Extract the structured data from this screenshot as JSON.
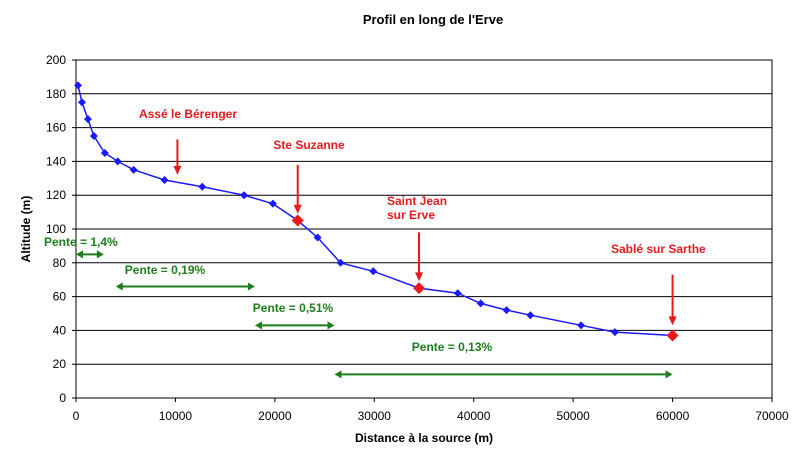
{
  "chart_data": {
    "type": "line",
    "title": "Profil en long de l'Erve",
    "xlabel": "Distance à la source (m)",
    "ylabel": "Altitude (m)",
    "xlim": [
      0,
      70000
    ],
    "ylim": [
      0,
      200
    ],
    "x_ticks": [
      "0",
      "10000",
      "20000",
      "30000",
      "40000",
      "50000",
      "60000",
      "70000"
    ],
    "y_ticks": [
      "0",
      "20",
      "40",
      "60",
      "80",
      "100",
      "120",
      "140",
      "160",
      "180",
      "200"
    ],
    "grid": "horizontal",
    "colors": {
      "line": "#1a1aff",
      "marker": "#1a1aff",
      "town": "#e8191c",
      "slope": "#1e7e1e"
    },
    "series": [
      {
        "points": [
          [
            200,
            185
          ],
          [
            600,
            175
          ],
          [
            1200,
            165
          ],
          [
            1800,
            155
          ],
          [
            2900,
            145
          ],
          [
            4200,
            140
          ],
          [
            5800,
            135
          ],
          [
            8900,
            129
          ],
          [
            12700,
            125
          ],
          [
            16900,
            120
          ],
          [
            19800,
            115
          ],
          [
            22300,
            105
          ],
          [
            24300,
            95
          ],
          [
            26600,
            80
          ],
          [
            29900,
            75
          ],
          [
            34500,
            65
          ],
          [
            38400,
            62
          ],
          [
            40700,
            56
          ],
          [
            43300,
            52
          ],
          [
            45700,
            49
          ],
          [
            50800,
            43
          ],
          [
            54200,
            39
          ],
          [
            60000,
            37
          ]
        ]
      }
    ],
    "towns": [
      {
        "label_lines": [
          "Assé le Bérenger"
        ],
        "x": 10200,
        "y": 130,
        "marked": false
      },
      {
        "label_lines": [
          "Ste Suzanne"
        ],
        "x": 22300,
        "y": 105,
        "marked": true
      },
      {
        "label_lines": [
          "Saint Jean",
          "sur Erve"
        ],
        "x": 34500,
        "y": 65,
        "marked": true
      },
      {
        "label_lines": [
          "Sablé sur Sarthe"
        ],
        "x": 60000,
        "y": 37,
        "marked": true
      }
    ],
    "slopes": [
      {
        "label": "Pente = 1,4%",
        "from": 0,
        "to": 2800,
        "y": 85
      },
      {
        "label": "Pente = 0,19%",
        "from": 4000,
        "to": 18000,
        "y": 66
      },
      {
        "label": "Pente = 0,51%",
        "from": 18000,
        "to": 26000,
        "y": 43
      },
      {
        "label": "Pente = 0,13%",
        "from": 26000,
        "to": 60000,
        "y": 14
      }
    ]
  }
}
